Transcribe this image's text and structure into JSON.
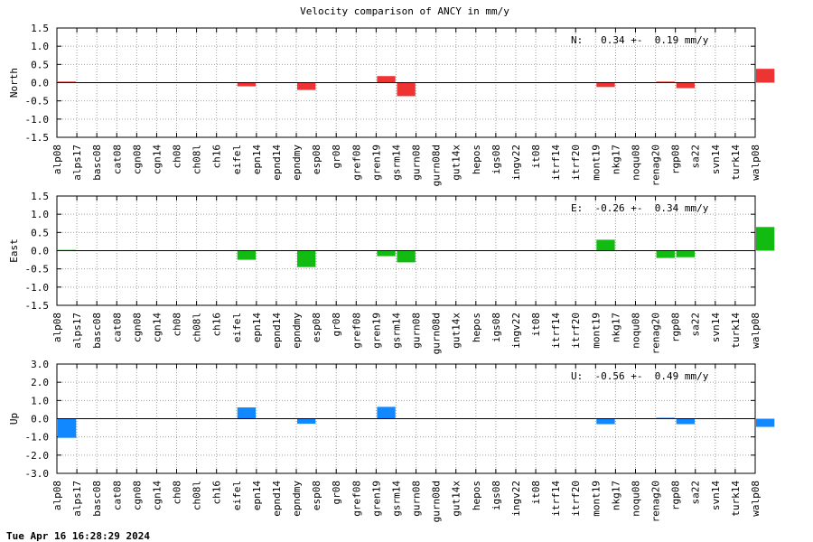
{
  "title": "Velocity comparison of ANCY in mm/y",
  "timestamp": "Tue Apr 16 16:28:29 2024",
  "chart_data": [
    {
      "type": "bar",
      "ylabel": "North",
      "stat_label": "N:   0.34 +-  0.19 mm/y",
      "ylim": [
        -1.5,
        1.5
      ],
      "ytick_labels": [
        "1.5",
        "1.0",
        "0.5",
        "0.0",
        "-0.5",
        "-1.0",
        "-1.5"
      ],
      "ytick_values": [
        1.5,
        1.0,
        0.5,
        0.0,
        -0.5,
        -1.0,
        -1.5
      ],
      "color": "#ee3333",
      "grid": true,
      "categories": [
        "alp08",
        "alps17",
        "basc08",
        "cat08",
        "cgn08",
        "cgn14",
        "ch08",
        "ch08l",
        "ch16",
        "eifel",
        "epn14",
        "epnd14",
        "epndmy",
        "esp08",
        "gr08",
        "gref08",
        "gren19",
        "gsrm14",
        "gurn08",
        "gurn08d",
        "gut14x",
        "hepos",
        "igs08",
        "ingv22",
        "it08",
        "itrf14",
        "itrf20",
        "mont19",
        "nkg17",
        "noqu08",
        "renag20",
        "rgp08",
        "sa22",
        "svn14",
        "turk14",
        "walp08"
      ],
      "values": [
        0.03,
        0,
        0,
        0,
        0,
        0,
        0,
        0,
        0,
        -0.1,
        0,
        0,
        -0.2,
        0,
        0,
        0,
        0.18,
        -0.37,
        0,
        0,
        0,
        0,
        0,
        0,
        0,
        0,
        0,
        -0.12,
        0,
        0,
        0.03,
        -0.15,
        0,
        0,
        0,
        0.38
      ]
    },
    {
      "type": "bar",
      "ylabel": "East",
      "stat_label": "E:  -0.26 +-  0.34 mm/y",
      "ylim": [
        -1.5,
        1.5
      ],
      "ytick_labels": [
        "1.5",
        "1.0",
        "0.5",
        "0.0",
        "-0.5",
        "-1.0",
        "-1.5"
      ],
      "ytick_values": [
        1.5,
        1.0,
        0.5,
        0.0,
        -0.5,
        -1.0,
        -1.5
      ],
      "color": "#11bb11",
      "grid": true,
      "categories": [
        "alp08",
        "alps17",
        "basc08",
        "cat08",
        "cgn08",
        "cgn14",
        "ch08",
        "ch08l",
        "ch16",
        "eifel",
        "epn14",
        "epnd14",
        "epndmy",
        "esp08",
        "gr08",
        "gref08",
        "gren19",
        "gsrm14",
        "gurn08",
        "gurn08d",
        "gut14x",
        "hepos",
        "igs08",
        "ingv22",
        "it08",
        "itrf14",
        "itrf20",
        "mont19",
        "nkg17",
        "noqu08",
        "renag20",
        "rgp08",
        "sa22",
        "svn14",
        "turk14",
        "walp08"
      ],
      "values": [
        0.02,
        0,
        0,
        0,
        0,
        0,
        0,
        0,
        0,
        -0.25,
        0,
        0,
        -0.45,
        0,
        0,
        0,
        -0.15,
        -0.32,
        0,
        0,
        0,
        0,
        0,
        0,
        0,
        0,
        0,
        0.3,
        0,
        0,
        -0.2,
        -0.18,
        0,
        0,
        0,
        0.65
      ]
    },
    {
      "type": "bar",
      "ylabel": "Up",
      "stat_label": "U:  -0.56 +-  0.49 mm/y",
      "ylim": [
        -3.0,
        3.0
      ],
      "ytick_labels": [
        "3.0",
        "2.0",
        "1.0",
        "0.0",
        "-1.0",
        "-2.0",
        "-3.0"
      ],
      "ytick_values": [
        3.0,
        2.0,
        1.0,
        0.0,
        -1.0,
        -2.0,
        -3.0
      ],
      "color": "#1188ff",
      "grid": true,
      "categories": [
        "alp08",
        "alps17",
        "basc08",
        "cat08",
        "cgn08",
        "cgn14",
        "ch08",
        "ch08l",
        "ch16",
        "eifel",
        "epn14",
        "epnd14",
        "epndmy",
        "esp08",
        "gr08",
        "gref08",
        "gren19",
        "gsrm14",
        "gurn08",
        "gurn08d",
        "gut14x",
        "hepos",
        "igs08",
        "ingv22",
        "it08",
        "itrf14",
        "itrf20",
        "mont19",
        "nkg17",
        "noqu08",
        "renag20",
        "rgp08",
        "sa22",
        "svn14",
        "turk14",
        "walp08"
      ],
      "values": [
        -1.05,
        0,
        0,
        0,
        0,
        0,
        0,
        0,
        0,
        0.62,
        0,
        0,
        -0.28,
        0,
        0,
        0,
        0.65,
        0,
        0,
        0,
        0,
        0,
        0,
        0,
        0,
        0,
        0,
        -0.3,
        0,
        0,
        0.05,
        -0.3,
        0,
        0,
        0,
        -0.45
      ]
    }
  ]
}
